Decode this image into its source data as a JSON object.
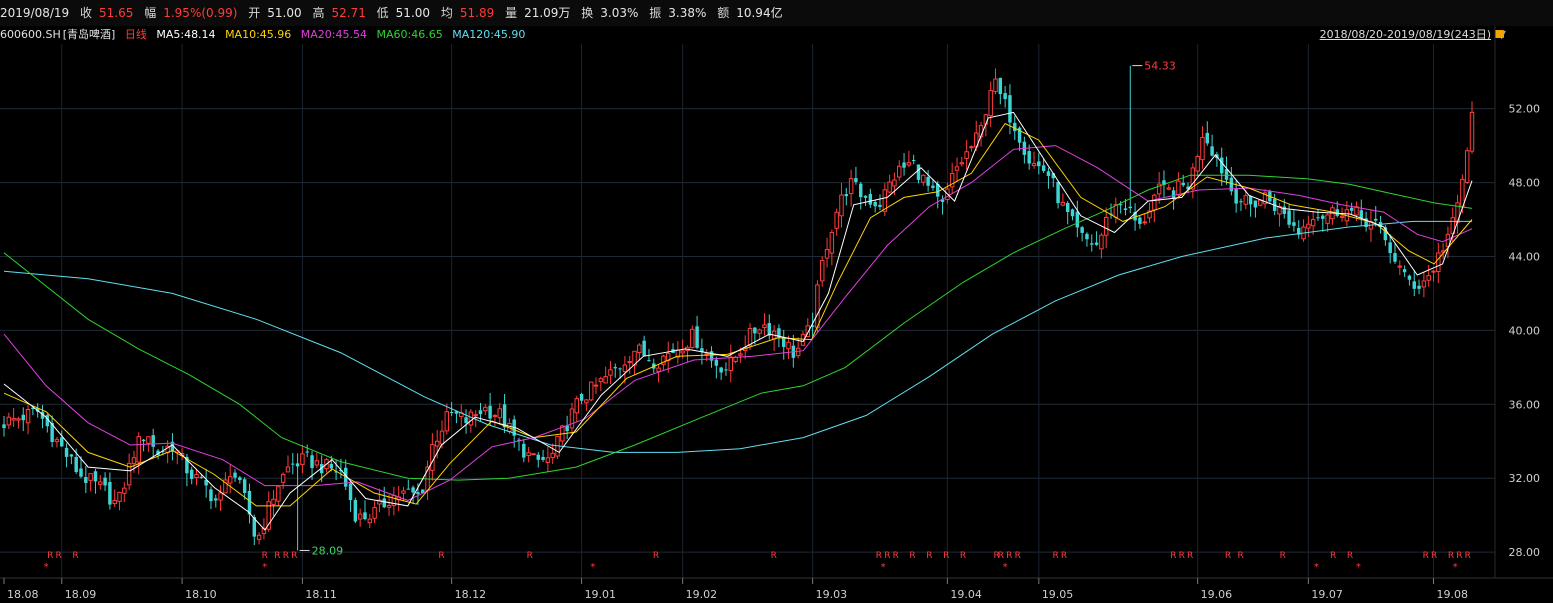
{
  "header": {
    "date": "2019/08/19",
    "close_label": "收",
    "close": "51.65",
    "change_label": "幅",
    "change": "1.95%(0.99)",
    "open_label": "开",
    "open": "51.00",
    "high_label": "高",
    "high": "52.71",
    "low_label": "低",
    "low": "51.00",
    "avg_label": "均",
    "avg": "51.89",
    "volume_label": "量",
    "volume": "21.09万",
    "turnover_label": "换",
    "turnover": "3.03%",
    "amplitude_label": "振",
    "amplitude": "3.38%",
    "amount_label": "额",
    "amount": "10.94亿"
  },
  "legend": {
    "symbol": "600600.SH",
    "name": "[青岛啤酒]",
    "period": "日线",
    "ma5": "MA5:48.14",
    "ma10": "MA10:45.96",
    "ma20": "MA20:45.54",
    "ma60": "MA60:46.65",
    "ma120": "MA120:45.90"
  },
  "range_label": "2018/08/20-2019/08/19(243日)",
  "colors": {
    "up": "#ff3b3b",
    "down": "#3fd4d4",
    "ma5": "#ffffff",
    "ma10": "#ffd400",
    "ma20": "#e040e0",
    "ma60": "#2fd42f",
    "ma120": "#5fe0f0",
    "bg": "#000000",
    "grid": "#1d2a3a"
  },
  "chart_data": {
    "type": "candlestick",
    "title": "",
    "ylim": [
      26.6,
      55.5
    ],
    "y_ticks": [
      "28.00",
      "32.00",
      "36.00",
      "40.00",
      "44.00",
      "48.00",
      "52.00"
    ],
    "x_ticks": [
      "18.08",
      "18.09",
      "18.10",
      "18.11",
      "18.12",
      "19.01",
      "19.02",
      "19.03",
      "19.04",
      "19.05",
      "19.06",
      "19.07",
      "19.08"
    ],
    "x_tick_index": [
      0,
      12,
      37,
      62,
      93,
      120,
      141,
      168,
      196,
      215,
      248,
      271,
      297
    ],
    "n_bars": 306,
    "max_label": "54.33",
    "max_index": 234,
    "min_label": "28.09",
    "min_index": 61,
    "close_path": [
      [
        0,
        35.0
      ],
      [
        8,
        35.6
      ],
      [
        12,
        34.2
      ],
      [
        18,
        32.2
      ],
      [
        24,
        31.3
      ],
      [
        27,
        30.5
      ],
      [
        31,
        33.5
      ],
      [
        34,
        34.6
      ],
      [
        36,
        33.3
      ],
      [
        40,
        33.8
      ],
      [
        44,
        32.3
      ],
      [
        48,
        31.5
      ],
      [
        51,
        30.6
      ],
      [
        54,
        32.6
      ],
      [
        58,
        30.4
      ],
      [
        60,
        28.5
      ],
      [
        62,
        29.8
      ],
      [
        65,
        31.6
      ],
      [
        68,
        32.7
      ],
      [
        72,
        33.0
      ],
      [
        76,
        32.6
      ],
      [
        80,
        32.4
      ],
      [
        84,
        29.8
      ],
      [
        88,
        30.1
      ],
      [
        92,
        31.0
      ],
      [
        96,
        31.2
      ],
      [
        99,
        31.0
      ],
      [
        102,
        33.9
      ],
      [
        106,
        35.5
      ],
      [
        110,
        35.1
      ],
      [
        114,
        35.8
      ],
      [
        118,
        35.4
      ],
      [
        122,
        33.9
      ],
      [
        126,
        32.9
      ],
      [
        130,
        33.0
      ],
      [
        133,
        34.6
      ],
      [
        137,
        36.3
      ],
      [
        141,
        37.0
      ],
      [
        146,
        38.0
      ],
      [
        150,
        39.0
      ],
      [
        155,
        38.3
      ],
      [
        159,
        38.9
      ],
      [
        164,
        39.7
      ],
      [
        168,
        38.4
      ],
      [
        172,
        37.9
      ],
      [
        176,
        39.3
      ],
      [
        180,
        40.4
      ],
      [
        184,
        39.8
      ],
      [
        188,
        38.7
      ],
      [
        192,
        40.2
      ],
      [
        195,
        44.2
      ],
      [
        198,
        46.5
      ],
      [
        201,
        48.0
      ],
      [
        204,
        47.3
      ],
      [
        208,
        46.8
      ],
      [
        212,
        48.5
      ],
      [
        216,
        49.1
      ],
      [
        220,
        47.6
      ],
      [
        223,
        46.6
      ],
      [
        226,
        48.6
      ],
      [
        229,
        49.6
      ],
      [
        232,
        50.6
      ],
      [
        235,
        53.6
      ],
      [
        237,
        52.6
      ],
      [
        241,
        50.8
      ],
      [
        244,
        49.1
      ],
      [
        248,
        48.6
      ],
      [
        252,
        46.5
      ],
      [
        256,
        45.0
      ],
      [
        260,
        44.6
      ],
      [
        263,
        46.5
      ],
      [
        266,
        47.0
      ],
      [
        270,
        45.5
      ],
      [
        274,
        47.5
      ],
      [
        278,
        47.5
      ],
      [
        282,
        48.0
      ],
      [
        285,
        50.8
      ],
      [
        288,
        49.5
      ],
      [
        292,
        47.5
      ],
      [
        296,
        46.7
      ],
      [
        300,
        47.3
      ],
      [
        304,
        46.3
      ],
      [
        308,
        45.3
      ],
      [
        311,
        46.4
      ],
      [
        314,
        46.2
      ],
      [
        318,
        46.6
      ],
      [
        322,
        46.2
      ],
      [
        326,
        45.7
      ],
      [
        330,
        44.2
      ],
      [
        333,
        42.8
      ],
      [
        336,
        42.4
      ],
      [
        339,
        43.0
      ],
      [
        342,
        44.5
      ],
      [
        345,
        46.0
      ],
      [
        347,
        48.5
      ],
      [
        349,
        51.5
      ]
    ],
    "ma5": [
      [
        0,
        37.1
      ],
      [
        10,
        35.3
      ],
      [
        20,
        32.6
      ],
      [
        30,
        32.4
      ],
      [
        40,
        33.8
      ],
      [
        50,
        31.5
      ],
      [
        58,
        30.2
      ],
      [
        62,
        29.2
      ],
      [
        68,
        31.2
      ],
      [
        78,
        33.0
      ],
      [
        86,
        30.9
      ],
      [
        96,
        30.5
      ],
      [
        104,
        33.8
      ],
      [
        112,
        35.3
      ],
      [
        122,
        34.7
      ],
      [
        132,
        33.4
      ],
      [
        142,
        36.5
      ],
      [
        152,
        38.6
      ],
      [
        162,
        39.0
      ],
      [
        172,
        38.6
      ],
      [
        182,
        39.8
      ],
      [
        190,
        39.4
      ],
      [
        196,
        42.0
      ],
      [
        202,
        46.8
      ],
      [
        210,
        47.2
      ],
      [
        218,
        48.8
      ],
      [
        226,
        47.0
      ],
      [
        234,
        51.5
      ],
      [
        240,
        51.8
      ],
      [
        248,
        49.0
      ],
      [
        256,
        46.2
      ],
      [
        264,
        45.3
      ],
      [
        272,
        47.0
      ],
      [
        280,
        47.2
      ],
      [
        288,
        49.5
      ],
      [
        296,
        47.3
      ],
      [
        304,
        46.6
      ],
      [
        312,
        46.4
      ],
      [
        320,
        46.3
      ],
      [
        328,
        45.6
      ],
      [
        336,
        43.0
      ],
      [
        342,
        43.6
      ],
      [
        349,
        48.1
      ]
    ],
    "ma10": [
      [
        0,
        36.6
      ],
      [
        10,
        35.6
      ],
      [
        20,
        33.4
      ],
      [
        30,
        32.6
      ],
      [
        40,
        33.5
      ],
      [
        50,
        32.2
      ],
      [
        60,
        30.5
      ],
      [
        68,
        30.5
      ],
      [
        78,
        32.5
      ],
      [
        88,
        31.2
      ],
      [
        98,
        30.6
      ],
      [
        106,
        32.8
      ],
      [
        116,
        35.1
      ],
      [
        126,
        34.2
      ],
      [
        136,
        34.5
      ],
      [
        148,
        37.4
      ],
      [
        160,
        38.6
      ],
      [
        172,
        38.7
      ],
      [
        184,
        39.6
      ],
      [
        192,
        39.5
      ],
      [
        198,
        42.5
      ],
      [
        206,
        46.1
      ],
      [
        214,
        47.2
      ],
      [
        222,
        47.5
      ],
      [
        230,
        48.5
      ],
      [
        238,
        51.2
      ],
      [
        246,
        50.3
      ],
      [
        256,
        47.2
      ],
      [
        266,
        45.9
      ],
      [
        276,
        46.7
      ],
      [
        286,
        48.3
      ],
      [
        296,
        47.7
      ],
      [
        306,
        46.8
      ],
      [
        316,
        46.4
      ],
      [
        326,
        45.8
      ],
      [
        334,
        44.3
      ],
      [
        340,
        43.6
      ],
      [
        349,
        46.0
      ]
    ],
    "ma20": [
      [
        0,
        39.8
      ],
      [
        10,
        37.0
      ],
      [
        20,
        35.0
      ],
      [
        30,
        33.8
      ],
      [
        40,
        33.9
      ],
      [
        52,
        33.0
      ],
      [
        62,
        31.6
      ],
      [
        74,
        31.6
      ],
      [
        84,
        31.8
      ],
      [
        96,
        30.8
      ],
      [
        106,
        31.9
      ],
      [
        116,
        33.7
      ],
      [
        126,
        34.2
      ],
      [
        138,
        35.2
      ],
      [
        150,
        37.3
      ],
      [
        164,
        38.4
      ],
      [
        178,
        38.6
      ],
      [
        190,
        38.9
      ],
      [
        200,
        41.8
      ],
      [
        210,
        44.6
      ],
      [
        220,
        46.7
      ],
      [
        230,
        48.0
      ],
      [
        240,
        49.8
      ],
      [
        250,
        50.0
      ],
      [
        260,
        48.8
      ],
      [
        272,
        47.0
      ],
      [
        284,
        47.6
      ],
      [
        296,
        47.7
      ],
      [
        308,
        47.3
      ],
      [
        318,
        46.8
      ],
      [
        328,
        46.4
      ],
      [
        336,
        45.2
      ],
      [
        342,
        44.8
      ],
      [
        349,
        45.5
      ]
    ],
    "ma60": [
      [
        0,
        44.2
      ],
      [
        10,
        42.4
      ],
      [
        20,
        40.6
      ],
      [
        32,
        39.0
      ],
      [
        44,
        37.6
      ],
      [
        56,
        36.0
      ],
      [
        66,
        34.2
      ],
      [
        80,
        32.9
      ],
      [
        96,
        32.0
      ],
      [
        108,
        31.9
      ],
      [
        120,
        32.0
      ],
      [
        136,
        32.6
      ],
      [
        150,
        33.8
      ],
      [
        166,
        35.3
      ],
      [
        180,
        36.6
      ],
      [
        190,
        37.0
      ],
      [
        200,
        38.0
      ],
      [
        214,
        40.4
      ],
      [
        228,
        42.6
      ],
      [
        240,
        44.2
      ],
      [
        252,
        45.5
      ],
      [
        262,
        46.5
      ],
      [
        272,
        47.6
      ],
      [
        282,
        48.4
      ],
      [
        296,
        48.4
      ],
      [
        310,
        48.2
      ],
      [
        320,
        47.9
      ],
      [
        330,
        47.4
      ],
      [
        340,
        46.9
      ],
      [
        349,
        46.6
      ]
    ],
    "ma120": [
      [
        0,
        43.2
      ],
      [
        20,
        42.8
      ],
      [
        40,
        42.0
      ],
      [
        60,
        40.6
      ],
      [
        80,
        38.8
      ],
      [
        100,
        36.4
      ],
      [
        115,
        34.9
      ],
      [
        130,
        33.8
      ],
      [
        145,
        33.4
      ],
      [
        160,
        33.4
      ],
      [
        175,
        33.6
      ],
      [
        190,
        34.2
      ],
      [
        205,
        35.4
      ],
      [
        220,
        37.5
      ],
      [
        235,
        39.8
      ],
      [
        250,
        41.6
      ],
      [
        265,
        43.0
      ],
      [
        280,
        44.0
      ],
      [
        300,
        45.0
      ],
      [
        320,
        45.6
      ],
      [
        335,
        45.9
      ],
      [
        349,
        45.9
      ]
    ]
  },
  "markers": {
    "R": [
      11,
      13,
      17,
      62,
      65,
      67,
      69,
      104,
      125,
      155,
      183,
      208,
      210,
      212,
      216,
      220,
      224,
      228,
      236,
      237,
      239,
      241,
      250,
      252,
      278,
      280,
      282,
      291,
      294,
      304,
      316,
      320,
      338,
      340,
      344,
      346,
      348
    ],
    "star": [
      10,
      62,
      140,
      209,
      238,
      312,
      322,
      345
    ]
  },
  "marker_labels": {
    "r": "R",
    "star": "*"
  }
}
